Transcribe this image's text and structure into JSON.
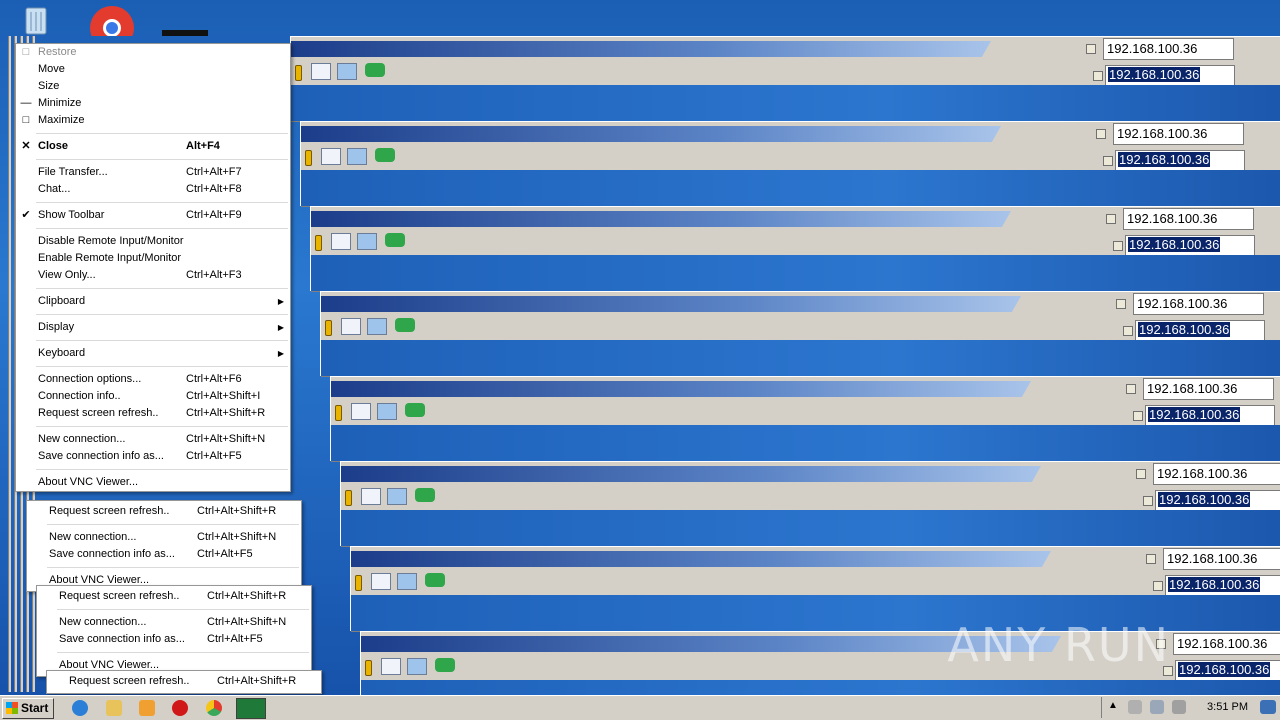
{
  "ip_address": "192.168.100.36",
  "system_menu": {
    "items": [
      {
        "label": "Restore",
        "shortcut": "",
        "state": "disabled",
        "mark": "restore"
      },
      {
        "label": "Move",
        "shortcut": ""
      },
      {
        "label": "Size",
        "shortcut": ""
      },
      {
        "label": "Minimize",
        "shortcut": "",
        "mark": "minimize"
      },
      {
        "label": "Maximize",
        "shortcut": "",
        "mark": "maximize"
      },
      {
        "sep": true
      },
      {
        "label": "Close",
        "shortcut": "Alt+F4",
        "bold": true,
        "mark": "close"
      },
      {
        "sep": true
      },
      {
        "label": "File Transfer...",
        "shortcut": "Ctrl+Alt+F7"
      },
      {
        "label": "Chat...",
        "shortcut": "Ctrl+Alt+F8"
      },
      {
        "sep": true
      },
      {
        "label": "Show Toolbar",
        "shortcut": "Ctrl+Alt+F9",
        "mark": "check"
      },
      {
        "sep": true
      },
      {
        "label": "Disable Remote Input/Monitor",
        "shortcut": ""
      },
      {
        "label": "Enable Remote Input/Monitor",
        "shortcut": ""
      },
      {
        "label": "View Only...",
        "shortcut": "Ctrl+Alt+F3"
      },
      {
        "sep": true
      },
      {
        "label": "Clipboard",
        "shortcut": "",
        "submenu": true
      },
      {
        "sep": true
      },
      {
        "label": "Display",
        "shortcut": "",
        "submenu": true
      },
      {
        "sep": true
      },
      {
        "label": "Keyboard",
        "shortcut": "",
        "submenu": true
      },
      {
        "sep": true
      },
      {
        "label": "Connection options...",
        "shortcut": "Ctrl+Alt+F6"
      },
      {
        "label": "Connection info..",
        "shortcut": "Ctrl+Alt+Shift+I"
      },
      {
        "label": "Request screen refresh..",
        "shortcut": "Ctrl+Alt+Shift+R"
      },
      {
        "sep": true
      },
      {
        "label": "New connection...",
        "shortcut": "Ctrl+Alt+Shift+N"
      },
      {
        "label": "Save connection info as...",
        "shortcut": "Ctrl+Alt+F5"
      },
      {
        "sep": true
      },
      {
        "label": "About VNC Viewer...",
        "shortcut": ""
      }
    ]
  },
  "ghost_menu": {
    "refresh_label": "Request screen refresh..",
    "refresh_shortcut": "Ctrl+Alt+Shift+R",
    "new_label": "New connection...",
    "new_shortcut": "Ctrl+Alt+Shift+N",
    "save_label": "Save connection info as...",
    "save_shortcut": "Ctrl+Alt+F5",
    "about_label": "About VNC Viewer..."
  },
  "taskbar": {
    "start_label": "Start",
    "clock": "3:51 PM",
    "icons": [
      "ie-icon",
      "explorer-icon",
      "media-player-icon",
      "opera-icon",
      "chrome-icon",
      "vnc-viewer-icon"
    ],
    "colors": {
      "ie": "#2b7fd6",
      "explorer": "#e8c25a",
      "media": "#f0a030",
      "opera": "#d01818",
      "chrome": "#3aa85a",
      "vnc": "#1f7a3a"
    }
  },
  "watermark": "ANY RUN"
}
